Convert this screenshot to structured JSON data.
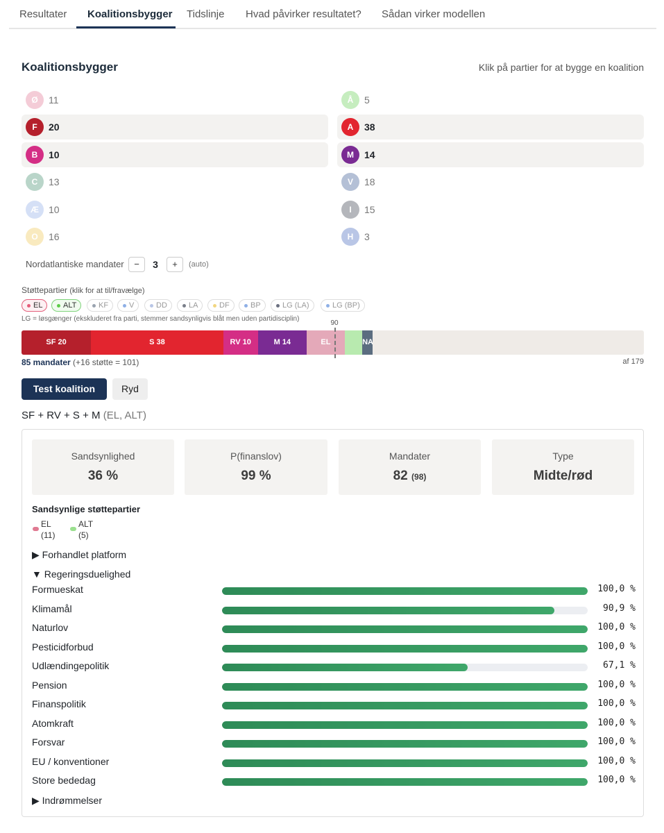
{
  "tabs": [
    "Resultater",
    "Koalitionsbygger",
    "Tidslinje",
    "Hvad påvirker resultatet?",
    "Sådan virker modellen"
  ],
  "builder": {
    "title": "Koalitionsbygger",
    "hint": "Klik på partier for at bygge en koalition",
    "parties_left": [
      {
        "letter": "Ø",
        "seats": "11",
        "color": "#e0708f",
        "selected": false
      },
      {
        "letter": "F",
        "seats": "20",
        "color": "#b5202c",
        "selected": true
      },
      {
        "letter": "B",
        "seats": "10",
        "color": "#d42e85",
        "selected": true
      },
      {
        "letter": "C",
        "seats": "13",
        "color": "#3a8a66",
        "selected": false
      },
      {
        "letter": "Æ",
        "seats": "10",
        "color": "#8aa7e6",
        "selected": false
      },
      {
        "letter": "O",
        "seats": "16",
        "color": "#f0c44a",
        "selected": false
      }
    ],
    "parties_right": [
      {
        "letter": "Å",
        "seats": "5",
        "color": "#5dcc4a",
        "selected": false
      },
      {
        "letter": "A",
        "seats": "38",
        "color": "#e2252f",
        "selected": true
      },
      {
        "letter": "M",
        "seats": "14",
        "color": "#7a2b93",
        "selected": true
      },
      {
        "letter": "V",
        "seats": "18",
        "color": "#2c4e8c",
        "selected": false
      },
      {
        "letter": "I",
        "seats": "15",
        "color": "#2a3240",
        "selected": false
      },
      {
        "letter": "H",
        "seats": "3",
        "color": "#3a5fb8",
        "selected": false
      }
    ],
    "nordatlantic": {
      "label": "Nordatlantiske mandater",
      "minus": "−",
      "value": "3",
      "plus": "+",
      "auto": "(auto)"
    },
    "support": {
      "label": "Støttepartier",
      "label_hint": "(klik for at til/fravælge)",
      "chips": [
        {
          "label": "EL",
          "color": "#e45e7a",
          "state": "on-el"
        },
        {
          "label": "ALT",
          "color": "#5dcc4a",
          "state": "on-alt"
        },
        {
          "label": "KF",
          "color": "#9aa3b0",
          "state": ""
        },
        {
          "label": "V",
          "color": "#8fb0e6",
          "state": ""
        },
        {
          "label": "DD",
          "color": "#b9c6e6",
          "state": ""
        },
        {
          "label": "LA",
          "color": "#7a7f8a",
          "state": ""
        },
        {
          "label": "DF",
          "color": "#f2d680",
          "state": ""
        },
        {
          "label": "BP",
          "color": "#8fb0e6",
          "state": ""
        },
        {
          "label": "LG (LA)",
          "color": "#6b7080",
          "state": ""
        },
        {
          "label": "LG (BP)",
          "color": "#8fb0e6",
          "state": ""
        }
      ],
      "note": "LG = løsgænger (ekskluderet fra parti, stemmer sandsynligvis blåt men uden partidisciplin)"
    },
    "seatbar": {
      "total": 179,
      "majority": "90",
      "segments": [
        {
          "label": "SF 20",
          "seats": 20,
          "color": "#b5202c"
        },
        {
          "label": "S 38",
          "seats": 38,
          "color": "#e2252f"
        },
        {
          "label": "RV 10",
          "seats": 10,
          "color": "#d42e85"
        },
        {
          "label": "M 14",
          "seats": 14,
          "color": "#7a2b93"
        },
        {
          "label": "EL",
          "seats": 11,
          "color": "#e4a9b9"
        },
        {
          "label": "",
          "seats": 5,
          "color": "#b8eaaf"
        },
        {
          "label": "NA",
          "seats": 3,
          "color": "#5b6d80"
        }
      ],
      "count_bold": "85 mandater",
      "count_rest": "(+16 støtte = 101)",
      "of_total": "af 179"
    },
    "test_button": "Test koalition",
    "clear_button": "Ryd",
    "coalition": "SF + RV + S + M",
    "coalition_support": "(EL, ALT)"
  },
  "results": {
    "stats": [
      {
        "label": "Sandsynlighed",
        "value": "36 %",
        "sub": ""
      },
      {
        "label": "P(finanslov)",
        "value": "99 %",
        "sub": ""
      },
      {
        "label": "Mandater",
        "value": "82",
        "sub": "(98)"
      },
      {
        "label": "Type",
        "value": "Midte/rød",
        "sub": ""
      }
    ],
    "likely_title": "Sandsynlige støttepartier",
    "likely": [
      {
        "name": "EL",
        "seats": "(11)",
        "color": "#e07a92"
      },
      {
        "name": "ALT",
        "seats": "(5)",
        "color": "#9be08f"
      }
    ],
    "platform_toggle": "▶  Forhandlet platform",
    "governability_toggle": "▼  Regeringsduelighed",
    "policies": [
      {
        "name": "Formueskat",
        "value": "100,0 %",
        "pct": 100
      },
      {
        "name": "Klimamål",
        "value": "90,9 %",
        "pct": 90.9
      },
      {
        "name": "Naturlov",
        "value": "100,0 %",
        "pct": 100
      },
      {
        "name": "Pesticidforbud",
        "value": "100,0 %",
        "pct": 100
      },
      {
        "name": "Udlændingepolitik",
        "value": "67,1 %",
        "pct": 67.1
      },
      {
        "name": "Pension",
        "value": "100,0 %",
        "pct": 100
      },
      {
        "name": "Finanspolitik",
        "value": "100,0 %",
        "pct": 100
      },
      {
        "name": "Atomkraft",
        "value": "100,0 %",
        "pct": 100
      },
      {
        "name": "Forsvar",
        "value": "100,0 %",
        "pct": 100
      },
      {
        "name": "EU / konventioner",
        "value": "100,0 %",
        "pct": 100
      },
      {
        "name": "Store bededag",
        "value": "100,0 %",
        "pct": 100
      }
    ],
    "concessions_toggle": "▶  Indrømmelser"
  }
}
